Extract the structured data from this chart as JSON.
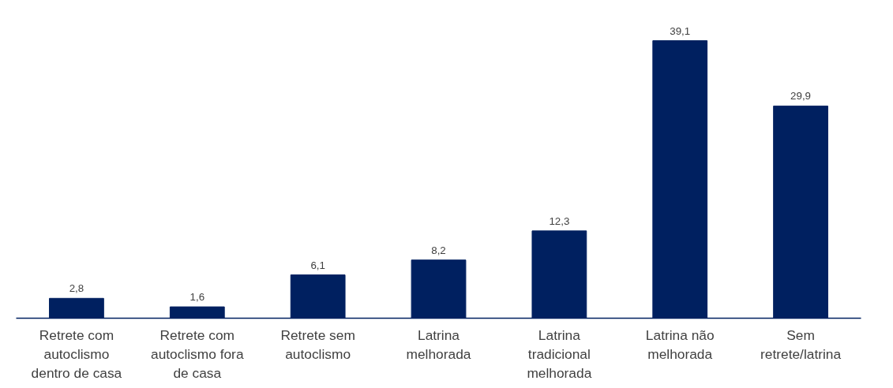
{
  "chart_data": {
    "type": "bar",
    "categories": [
      "Retrete com\nautoclismo\ndentro de casa",
      "Retrete com\nautoclismo fora\nde casa",
      "Retrete sem\nautoclismo",
      "Latrina\nmelhorada",
      "Latrina\ntradicional\nmelhorada",
      "Latrina não\nmelhorada",
      "Sem\nretrete/latrina"
    ],
    "values": [
      2.8,
      1.6,
      6.1,
      8.2,
      12.3,
      39.1,
      29.9
    ],
    "color": "#002060",
    "value_labels": [
      "2,8",
      "1,6",
      "6,1",
      "8,2",
      "12,3",
      "39,1",
      "29,9"
    ],
    "grid": false
  }
}
